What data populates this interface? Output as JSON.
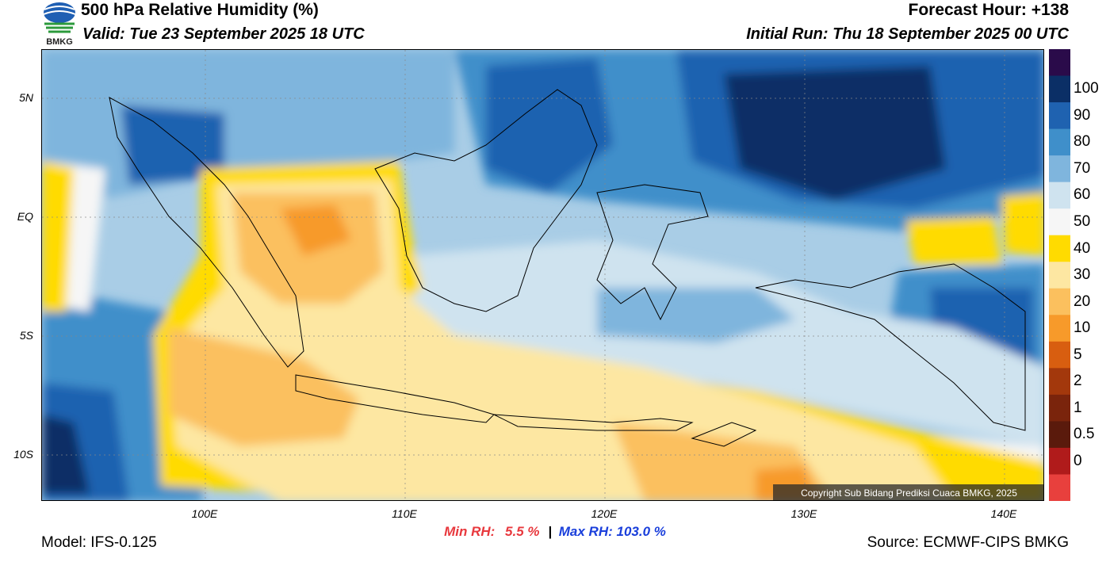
{
  "header": {
    "title": "500 hPa Relative Humidity (%)",
    "valid": "Valid: Tue 23 September 2025 18 UTC",
    "forecast_hour": "Forecast Hour: +138",
    "initial_run": "Initial Run: Thu 18 September 2025 00 UTC",
    "logo_text": "BMKG"
  },
  "map": {
    "lat_labels": [
      "5N",
      "EQ",
      "5S",
      "10S"
    ],
    "lon_labels": [
      "100E",
      "110E",
      "120E",
      "130E",
      "140E"
    ],
    "copyright": "Copyright Sub Bidang Prediksi Cuaca BMKG, 2025"
  },
  "stats": {
    "min_label": "Min RH:",
    "min_value": "5.5 %",
    "separator": "|",
    "max_label": "Max RH: 103.0 %"
  },
  "footer": {
    "model": "Model: IFS-0.125",
    "source": "Source: ECMWF-CIPS BMKG"
  },
  "colorbar": {
    "labels": [
      "100",
      "90",
      "80",
      "70",
      "60",
      "50",
      "40",
      "30",
      "20",
      "10",
      "5",
      "2",
      "1",
      "0.5",
      "0"
    ],
    "colors": [
      "#2a0b4a",
      "#0b2f66",
      "#1f62b0",
      "#3f8fca",
      "#7fb5dd",
      "#cfe3ef",
      "#f6f6f6",
      "#ffdb00",
      "#fde7a2",
      "#fbc05e",
      "#f79a2a",
      "#d85e10",
      "#a3380c",
      "#7a240c",
      "#5a1a0c",
      "#b01b1b",
      "#e8403d"
    ]
  }
}
